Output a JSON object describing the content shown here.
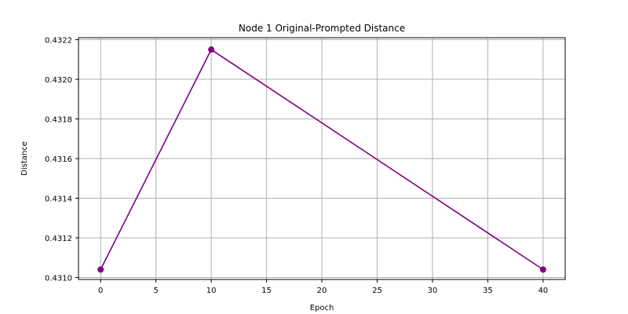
{
  "chart_data": {
    "type": "line",
    "title": "Node 1 Original-Prompted Distance",
    "xlabel": "Epoch",
    "ylabel": "Distance",
    "x": [
      0,
      10,
      40
    ],
    "series": [
      {
        "values": [
          0.43104,
          0.43215,
          0.43104
        ],
        "color": "#800080",
        "marker": "circle"
      }
    ],
    "xlim": [
      -2,
      42
    ],
    "ylim": [
      0.43099,
      0.43221
    ],
    "xticks": [
      0,
      5,
      10,
      15,
      20,
      25,
      30,
      35,
      40
    ],
    "yticks": [
      "0.4310",
      "0.4312",
      "0.4314",
      "0.4316",
      "0.4318",
      "0.4320",
      "0.4322"
    ],
    "grid": true,
    "colors": {
      "grid": "#b0b0b0",
      "axis": "#000000"
    }
  }
}
